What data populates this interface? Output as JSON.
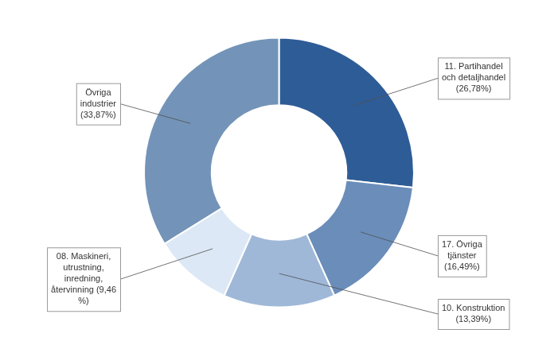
{
  "chart_data": {
    "type": "doughnut",
    "categories": [
      "11. Partihandel\noch detaljhandel\n(26,78%)",
      "17. Övriga\ntjänster\n(16,49%)",
      "10. Konstruktion\n(13,39%)",
      "08. Maskineri,\nutrustning,\ninredning,\nåtervinning (9,46\n%)",
      "Övriga\nindustrier\n(33,87%)"
    ],
    "values": [
      26.78,
      16.49,
      13.39,
      9.46,
      33.87
    ],
    "colors": [
      "#2e5c96",
      "#6b8dba",
      "#9fb8d8",
      "#dce8f5",
      "#7394b8"
    ]
  }
}
